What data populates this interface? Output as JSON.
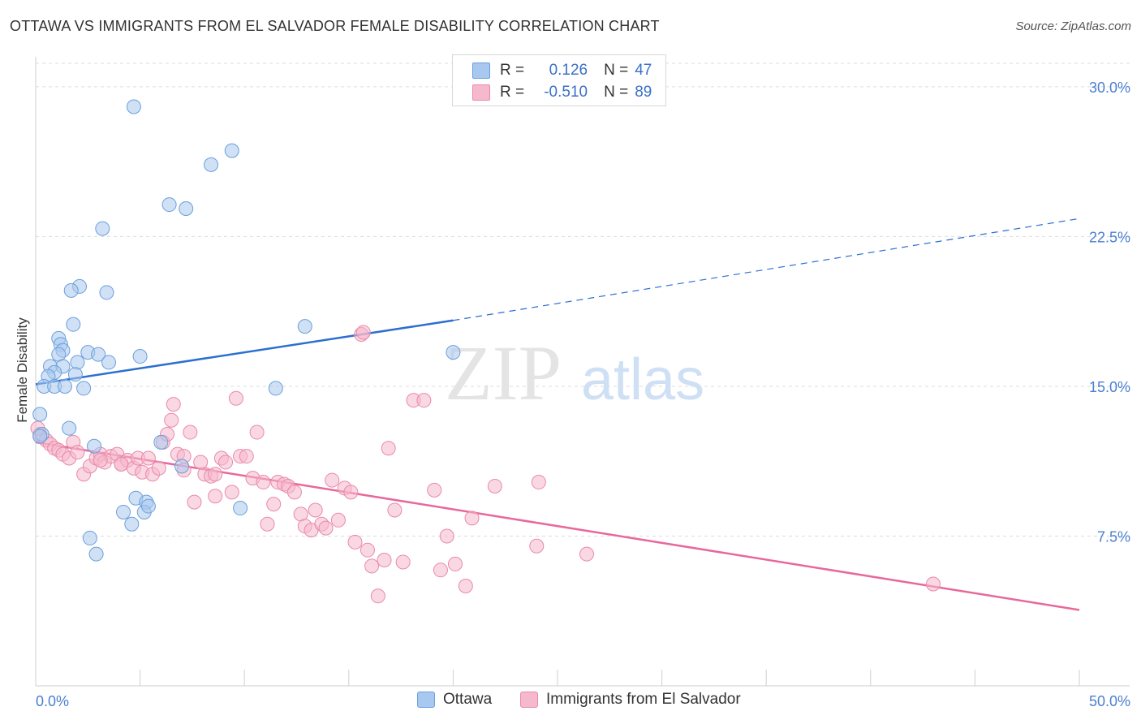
{
  "title": "OTTAWA VS IMMIGRANTS FROM EL SALVADOR FEMALE DISABILITY CORRELATION CHART",
  "source": "Source: ZipAtlas.com",
  "watermark": {
    "zip": "ZIP",
    "atlas": "atlas"
  },
  "legend": {
    "rows": [
      {
        "r_label": "R =",
        "r_value": "0.126",
        "n_label": "N =",
        "n_value": "47"
      },
      {
        "r_label": "R =",
        "r_value": "-0.510",
        "n_label": "N =",
        "n_value": "89"
      }
    ]
  },
  "bottom_legend": {
    "ottawa": "Ottawa",
    "elsalvador": "Immigrants from El Salvador"
  },
  "chart_data": {
    "type": "scatter",
    "title": "OTTAWA VS IMMIGRANTS FROM EL SALVADOR FEMALE DISABILITY CORRELATION CHART",
    "xlabel": "",
    "ylabel": "Female Disability",
    "xlim": [
      0,
      50
    ],
    "ylim": [
      0,
      31.5
    ],
    "x_tick_labels": [
      "0.0%",
      "50.0%"
    ],
    "y_tick_labels": [
      "7.5%",
      "15.0%",
      "22.5%",
      "30.0%"
    ],
    "y_ticks": [
      7.5,
      15.0,
      22.5,
      30.0
    ],
    "colors": {
      "ottawa_fill": "#a9c8ef",
      "ottawa_stroke": "#6a9fdc",
      "ottawa_line": "#2c6fd1",
      "salvador_fill": "#f6b8cc",
      "salvador_stroke": "#e98aa8",
      "salvador_line": "#e8689a",
      "axis_text": "#4a7fd0",
      "grid": "#dcdcdc"
    },
    "series": [
      {
        "name": "Ottawa",
        "points": [
          [
            4.7,
            29.0
          ],
          [
            9.4,
            26.8
          ],
          [
            8.4,
            26.1
          ],
          [
            6.4,
            24.1
          ],
          [
            7.2,
            23.9
          ],
          [
            3.2,
            22.9
          ],
          [
            2.1,
            20.0
          ],
          [
            1.7,
            19.8
          ],
          [
            3.4,
            19.7
          ],
          [
            1.8,
            18.1
          ],
          [
            12.9,
            18.0
          ],
          [
            1.1,
            17.4
          ],
          [
            1.2,
            17.1
          ],
          [
            1.3,
            16.8
          ],
          [
            2.5,
            16.7
          ],
          [
            3.0,
            16.6
          ],
          [
            5.0,
            16.5
          ],
          [
            20.0,
            16.7
          ],
          [
            1.1,
            16.6
          ],
          [
            2.0,
            16.2
          ],
          [
            3.5,
            16.2
          ],
          [
            0.7,
            16.0
          ],
          [
            1.3,
            16.0
          ],
          [
            0.9,
            15.7
          ],
          [
            0.6,
            15.5
          ],
          [
            1.9,
            15.6
          ],
          [
            0.4,
            15.0
          ],
          [
            0.9,
            15.0
          ],
          [
            1.4,
            15.0
          ],
          [
            2.3,
            14.9
          ],
          [
            11.5,
            14.9
          ],
          [
            0.2,
            13.6
          ],
          [
            1.6,
            12.9
          ],
          [
            0.3,
            12.6
          ],
          [
            6.0,
            12.2
          ],
          [
            2.8,
            12.0
          ],
          [
            7.0,
            11.0
          ],
          [
            4.8,
            9.4
          ],
          [
            5.3,
            9.2
          ],
          [
            4.2,
            8.7
          ],
          [
            5.2,
            8.7
          ],
          [
            9.8,
            8.9
          ],
          [
            4.6,
            8.1
          ],
          [
            2.6,
            7.4
          ],
          [
            2.9,
            6.6
          ],
          [
            0.2,
            12.5
          ],
          [
            5.4,
            9.0
          ]
        ],
        "trend": {
          "x0": 0,
          "y0": 15.1,
          "x1": 20.0,
          "y1": 18.3,
          "dash_x1": 50,
          "dash_y1": 23.4
        }
      },
      {
        "name": "Immigrants from El Salvador",
        "points": [
          [
            0.2,
            12.6
          ],
          [
            0.5,
            12.3
          ],
          [
            0.7,
            12.1
          ],
          [
            0.9,
            11.9
          ],
          [
            1.1,
            11.8
          ],
          [
            1.3,
            11.6
          ],
          [
            1.6,
            11.4
          ],
          [
            1.8,
            12.2
          ],
          [
            2.0,
            11.7
          ],
          [
            2.3,
            10.6
          ],
          [
            2.6,
            11.0
          ],
          [
            2.9,
            11.4
          ],
          [
            3.1,
            11.6
          ],
          [
            3.3,
            11.2
          ],
          [
            3.6,
            11.5
          ],
          [
            3.9,
            11.6
          ],
          [
            4.1,
            11.1
          ],
          [
            4.4,
            11.3
          ],
          [
            4.7,
            10.9
          ],
          [
            4.9,
            11.4
          ],
          [
            5.1,
            10.7
          ],
          [
            5.4,
            11.4
          ],
          [
            5.6,
            10.6
          ],
          [
            5.9,
            10.9
          ],
          [
            6.1,
            12.2
          ],
          [
            6.3,
            12.6
          ],
          [
            6.5,
            13.3
          ],
          [
            6.8,
            11.6
          ],
          [
            7.1,
            10.8
          ],
          [
            7.4,
            12.7
          ],
          [
            7.6,
            9.2
          ],
          [
            7.9,
            11.2
          ],
          [
            8.1,
            10.6
          ],
          [
            8.4,
            10.5
          ],
          [
            8.6,
            10.6
          ],
          [
            8.9,
            11.4
          ],
          [
            9.1,
            11.2
          ],
          [
            9.4,
            9.7
          ],
          [
            9.6,
            14.4
          ],
          [
            9.8,
            11.5
          ],
          [
            10.1,
            11.5
          ],
          [
            10.4,
            10.4
          ],
          [
            10.6,
            12.7
          ],
          [
            10.9,
            10.2
          ],
          [
            11.1,
            8.1
          ],
          [
            11.4,
            9.1
          ],
          [
            11.6,
            10.2
          ],
          [
            11.9,
            10.1
          ],
          [
            12.1,
            10.0
          ],
          [
            12.4,
            9.7
          ],
          [
            12.7,
            8.6
          ],
          [
            12.9,
            8.0
          ],
          [
            13.2,
            7.8
          ],
          [
            13.4,
            8.8
          ],
          [
            13.7,
            8.1
          ],
          [
            13.9,
            7.9
          ],
          [
            14.2,
            10.3
          ],
          [
            14.5,
            8.3
          ],
          [
            14.8,
            9.9
          ],
          [
            15.1,
            9.7
          ],
          [
            15.3,
            7.2
          ],
          [
            15.6,
            17.6
          ],
          [
            15.9,
            6.8
          ],
          [
            16.1,
            6.0
          ],
          [
            16.4,
            4.5
          ],
          [
            16.7,
            6.3
          ],
          [
            16.9,
            11.9
          ],
          [
            17.2,
            8.8
          ],
          [
            17.6,
            6.2
          ],
          [
            18.1,
            14.3
          ],
          [
            18.6,
            14.3
          ],
          [
            19.1,
            9.8
          ],
          [
            19.4,
            5.8
          ],
          [
            19.7,
            7.5
          ],
          [
            20.1,
            6.1
          ],
          [
            20.6,
            5.0
          ],
          [
            20.9,
            8.4
          ],
          [
            22.0,
            10.0
          ],
          [
            24.0,
            7.0
          ],
          [
            24.1,
            10.2
          ],
          [
            26.4,
            6.6
          ],
          [
            43.0,
            5.1
          ],
          [
            6.6,
            14.1
          ],
          [
            8.6,
            9.5
          ],
          [
            7.1,
            11.5
          ],
          [
            3.1,
            11.3
          ],
          [
            4.1,
            11.1
          ],
          [
            15.7,
            17.7
          ],
          [
            0.1,
            12.9
          ]
        ],
        "trend": {
          "x0": 0,
          "y0": 12.2,
          "x1": 50,
          "y1": 3.8
        }
      }
    ]
  }
}
